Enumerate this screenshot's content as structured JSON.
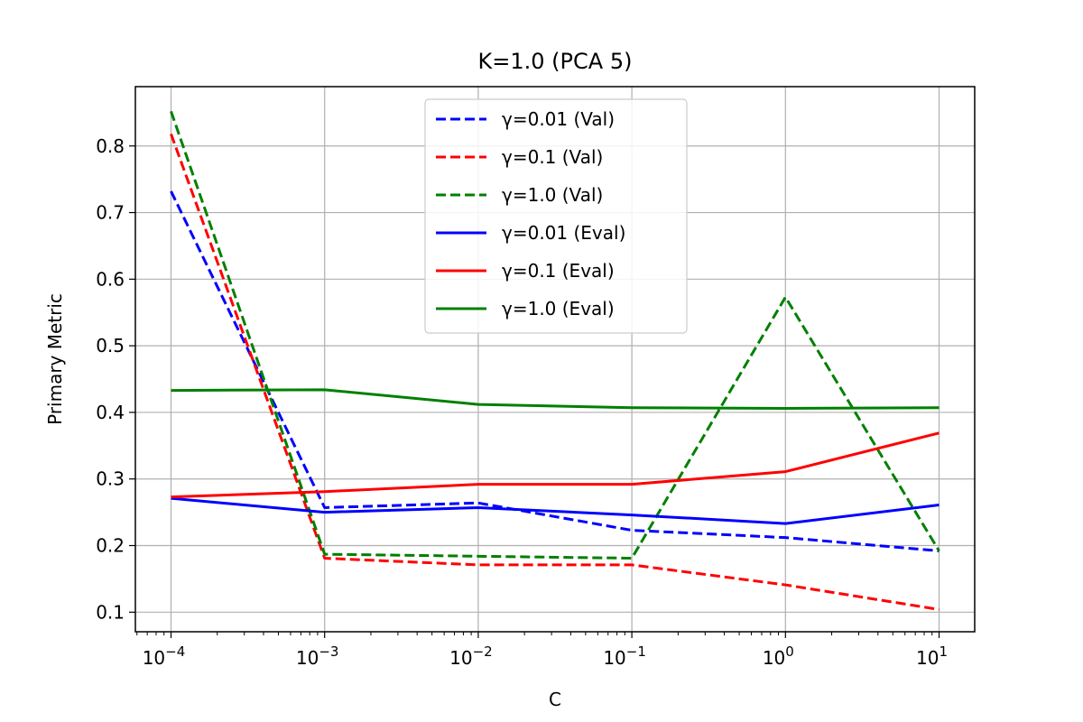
{
  "chart_data": {
    "type": "line",
    "title": "K=1.0 (PCA 5)",
    "xlabel": "C",
    "ylabel": "Primary Metric",
    "x_scale": "log",
    "x": [
      0.0001,
      0.001,
      0.01,
      0.1,
      1,
      10
    ],
    "xlim": [
      5.86e-05,
      17.06
    ],
    "ylim": [
      0.0706,
      0.8891
    ],
    "x_ticks": [
      {
        "value": 0.0001,
        "base": "10",
        "exp": "−4"
      },
      {
        "value": 0.001,
        "base": "10",
        "exp": "−3"
      },
      {
        "value": 0.01,
        "base": "10",
        "exp": "−2"
      },
      {
        "value": 0.1,
        "base": "10",
        "exp": "−1"
      },
      {
        "value": 1,
        "base": "10",
        "exp": "0"
      },
      {
        "value": 10,
        "base": "10",
        "exp": "1"
      }
    ],
    "y_ticks": [
      {
        "value": 0.1,
        "label": "0.1"
      },
      {
        "value": 0.2,
        "label": "0.2"
      },
      {
        "value": 0.3,
        "label": "0.3"
      },
      {
        "value": 0.4,
        "label": "0.4"
      },
      {
        "value": 0.5,
        "label": "0.5"
      },
      {
        "value": 0.6,
        "label": "0.6"
      },
      {
        "value": 0.7,
        "label": "0.7"
      },
      {
        "value": 0.8,
        "label": "0.8"
      }
    ],
    "grid": true,
    "legend_position": "upper-center",
    "series": [
      {
        "name": "γ=0.01 (Val)",
        "color": "#0000ff",
        "style": "dashed",
        "values": [
          0.732,
          0.257,
          0.264,
          0.223,
          0.212,
          0.192
        ]
      },
      {
        "name": "γ=0.1 (Val)",
        "color": "#ff0000",
        "style": "dashed",
        "values": [
          0.818,
          0.181,
          0.171,
          0.171,
          0.141,
          0.104
        ]
      },
      {
        "name": "γ=1.0 (Val)",
        "color": "#008000",
        "style": "dashed",
        "values": [
          0.852,
          0.187,
          0.184,
          0.181,
          0.573,
          0.192
        ]
      },
      {
        "name": "γ=0.01 (Eval)",
        "color": "#0000ff",
        "style": "solid",
        "values": [
          0.271,
          0.25,
          0.257,
          0.246,
          0.233,
          0.261
        ]
      },
      {
        "name": "γ=0.1 (Eval)",
        "color": "#ff0000",
        "style": "solid",
        "values": [
          0.273,
          0.281,
          0.292,
          0.292,
          0.311,
          0.369
        ]
      },
      {
        "name": "γ=1.0 (Eval)",
        "color": "#008000",
        "style": "solid",
        "values": [
          0.433,
          0.434,
          0.412,
          0.407,
          0.406,
          0.407
        ]
      }
    ]
  }
}
